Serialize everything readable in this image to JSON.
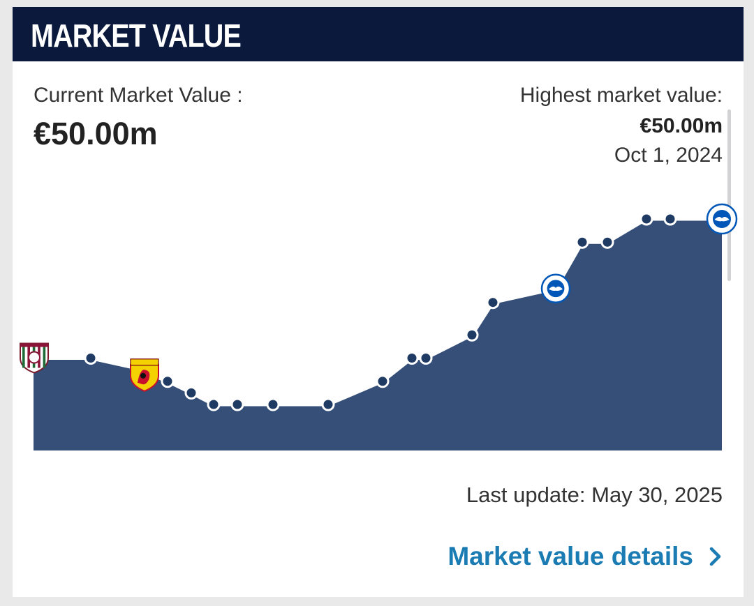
{
  "header": {
    "title": "MARKET VALUE"
  },
  "current": {
    "label": "Current Market Value :",
    "value": "€50.00m"
  },
  "highest": {
    "label": "Highest market value:",
    "value": "€50.00m",
    "date": "Oct 1, 2024"
  },
  "footer": {
    "last_update": "Last update: May 30, 2025",
    "details_link": "Market value details"
  },
  "colors": {
    "header_bg": "#0b1a3c",
    "area_fill": "#354f78",
    "line": "#ffffff",
    "point_fill": "#1f3b63",
    "link": "#1a7cb3"
  },
  "icons": {
    "details_chevron": "chevron-right-icon"
  },
  "chart_data": {
    "type": "area",
    "title": "",
    "xlabel": "",
    "ylabel": "",
    "grid": false,
    "legend": "none",
    "points": [
      {
        "v": 20,
        "badge": "fluminense-crest"
      },
      {
        "v": 20
      },
      {
        "v": 18,
        "badge": "watford-crest"
      },
      {
        "v": 15
      },
      {
        "v": 12.5
      },
      {
        "v": 10
      },
      {
        "v": 10
      },
      {
        "v": 10
      },
      {
        "v": 10
      },
      {
        "v": 15
      },
      {
        "v": 20
      },
      {
        "v": 20
      },
      {
        "v": 25
      },
      {
        "v": 32
      },
      {
        "v": 35,
        "badge": "brighton-crest"
      },
      {
        "v": 45
      },
      {
        "v": 45
      },
      {
        "v": 50
      },
      {
        "v": 50
      },
      {
        "v": 50,
        "badge": "brighton-crest"
      }
    ],
    "ylim": [
      0,
      50
    ]
  }
}
